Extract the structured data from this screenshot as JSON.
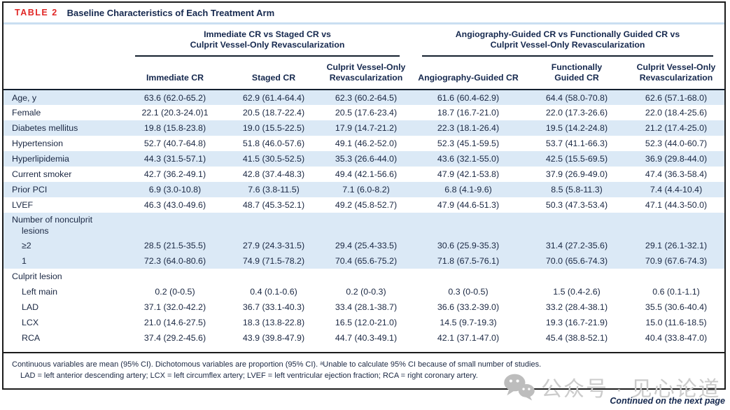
{
  "colors": {
    "accent_red": "#e12726",
    "heading_navy": "#15284e",
    "row_stripe_blue": "#dbe9f6",
    "title_underline_blue": "#c9def1",
    "watermark_gray": "#cbcbcb"
  },
  "header": {
    "table_label": "TABLE 2",
    "table_title": "Baseline Characteristics of Each Treatment Arm"
  },
  "table": {
    "group_headers": [
      {
        "lines": [
          "Immediate CR vs Staged CR vs",
          "Culprit Vessel-Only Revascularization"
        ]
      },
      {
        "lines": [
          "Angiography-Guided CR vs Functionally Guided CR vs",
          "Culprit Vessel-Only Revascularization"
        ]
      }
    ],
    "columns": [
      {
        "lines": [
          "Immediate CR"
        ]
      },
      {
        "lines": [
          "Staged CR"
        ]
      },
      {
        "lines": [
          "Culprit Vessel-Only",
          "Revascularization"
        ]
      },
      {
        "lines": [
          "Angiography-Guided CR"
        ]
      },
      {
        "lines": [
          "Functionally",
          "Guided CR"
        ]
      },
      {
        "lines": [
          "Culprit Vessel-Only",
          "Revascularization"
        ]
      }
    ],
    "rows": [
      {
        "label": "Age, y",
        "indent": 0,
        "shade": "blue",
        "values": [
          "63.6 (62.0-65.2)",
          "62.9 (61.4-64.4)",
          "62.3 (60.2-64.5)",
          "61.6 (60.4-62.9)",
          "64.4 (58.0-70.8)",
          "62.6 (57.1-68.0)"
        ]
      },
      {
        "label": "Female",
        "indent": 0,
        "shade": "white",
        "values": [
          "22.1 (20.3-24.0)1",
          "20.5 (18.7-22.4)",
          "20.5 (17.6-23.4)",
          "18.7 (16.7-21.0)",
          "22.0 (17.3-26.6)",
          "22.0 (18.4-25.6)"
        ]
      },
      {
        "label": "Diabetes mellitus",
        "indent": 0,
        "shade": "blue",
        "values": [
          "19.8 (15.8-23.8)",
          "19.0 (15.5-22.5)",
          "17.9 (14.7-21.2)",
          "22.3 (18.1-26.4)",
          "19.5 (14.2-24.8)",
          "21.2 (17.4-25.0)"
        ]
      },
      {
        "label": "Hypertension",
        "indent": 0,
        "shade": "white",
        "values": [
          "52.7 (40.7-64.8)",
          "51.8 (46.0-57.6)",
          "49.1 (46.2-52.0)",
          "52.3 (45.1-59.5)",
          "53.7 (41.1-66.3)",
          "52.3 (44.0-60.7)"
        ]
      },
      {
        "label": "Hyperlipidemia",
        "indent": 0,
        "shade": "blue",
        "values": [
          "44.3 (31.5-57.1)",
          "41.5 (30.5-52.5)",
          "35.3 (26.6-44.0)",
          "43.6 (32.1-55.0)",
          "42.5 (15.5-69.5)",
          "36.9 (29.8-44.0)"
        ]
      },
      {
        "label": "Current smoker",
        "indent": 0,
        "shade": "white",
        "values": [
          "42.7 (36.2-49.1)",
          "42.8 (37.4-48.3)",
          "49.4 (42.1-56.6)",
          "47.9 (42.1-53.8)",
          "37.9 (26.9-49.0)",
          "47.4 (36.3-58.4)"
        ]
      },
      {
        "label": "Prior PCI",
        "indent": 0,
        "shade": "blue",
        "values": [
          "6.9 (3.0-10.8)",
          "7.6 (3.8-11.5)",
          "7.1 (6.0-8.2)",
          "6.8 (4.1-9.6)",
          "8.5 (5.8-11.3)",
          "7.4 (4.4-10.4)"
        ]
      },
      {
        "label": "LVEF",
        "indent": 0,
        "shade": "white",
        "values": [
          "46.3 (43.0-49.6)",
          "48.7 (45.3-52.1)",
          "49.2 (45.8-52.7)",
          "47.9 (44.6-51.3)",
          "50.3 (47.3-53.4)",
          "47.1 (44.3-50.0)"
        ]
      },
      {
        "label": "Number of nonculprit lesions",
        "indent": 0,
        "shade": "blue",
        "values": null
      },
      {
        "label": "≥2",
        "indent": 1,
        "shade": "blue",
        "values": [
          "28.5 (21.5-35.5)",
          "27.9 (24.3-31.5)",
          "29.4 (25.4-33.5)",
          "30.6 (25.9-35.3)",
          "31.4 (27.2-35.6)",
          "29.1 (26.1-32.1)"
        ]
      },
      {
        "label": "1",
        "indent": 1,
        "shade": "blue",
        "values": [
          "72.3 (64.0-80.6)",
          "74.9 (71.5-78.2)",
          "70.4 (65.6-75.2)",
          "71.8 (67.5-76.1)",
          "70.0 (65.6-74.3)",
          "70.9 (67.6-74.3)"
        ]
      },
      {
        "label": "Culprit lesion",
        "indent": 0,
        "shade": "white",
        "values": null
      },
      {
        "label": "Left main",
        "indent": 1,
        "shade": "white",
        "values": [
          "0.2 (0-0.5)",
          "0.4 (0.1-0.6)",
          "0.2 (0-0.3)",
          "0.3 (0-0.5)",
          "1.5 (0.4-2.6)",
          "0.6 (0.1-1.1)"
        ]
      },
      {
        "label": "LAD",
        "indent": 1,
        "shade": "white",
        "values": [
          "37.1 (32.0-42.2)",
          "36.7 (33.1-40.3)",
          "33.4 (28.1-38.7)",
          "36.6 (33.2-39.0)",
          "33.2 (28.4-38.1)",
          "35.5 (30.6-40.4)"
        ]
      },
      {
        "label": "LCX",
        "indent": 1,
        "shade": "white",
        "values": [
          "21.0 (14.6-27.5)",
          "18.3 (13.8-22.8)",
          "16.5 (12.0-21.0)",
          "14.5 (9.7-19.3)",
          "19.3 (16.7-21.9)",
          "15.0 (11.6-18.5)"
        ]
      },
      {
        "label": "RCA",
        "indent": 1,
        "shade": "white",
        "values": [
          "37.4 (29.2-45.6)",
          "43.9 (39.8-47.9)",
          "44.7 (40.3-49.1)",
          "42.1 (37.1-47.0)",
          "45.4 (38.8-52.1)",
          "40.4 (33.8-47.0)"
        ]
      }
    ]
  },
  "footnotes": [
    "Continuous variables are mean (95% CI). Dichotomous variables are proportion (95% CI). ᵃUnable to calculate 95% CI because of small number of studies.",
    "LAD = left anterior descending artery; LCX = left circumflex artery; LVEF = left ventricular ejection fraction; RCA = right coronary artery."
  ],
  "watermark": {
    "icon": "wechat-icon",
    "text": "公众号 · 见心论道"
  },
  "continued_note": "Continued on the next page"
}
